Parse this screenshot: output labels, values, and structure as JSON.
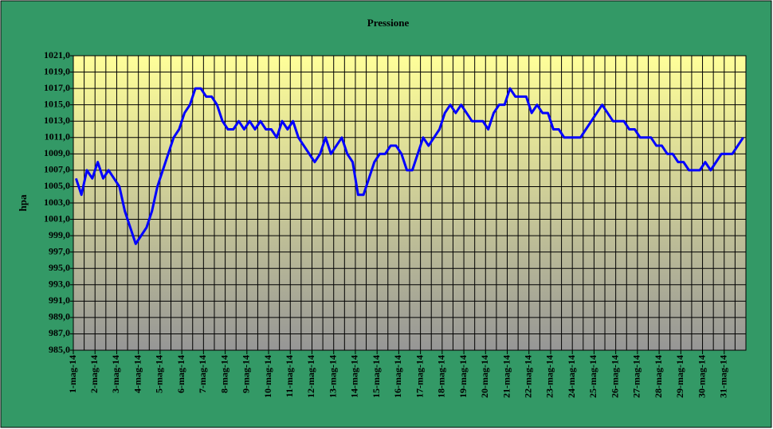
{
  "chart_data": {
    "type": "line",
    "title": "Pressione",
    "y_label": "hpa",
    "categories": [
      "1-mag-14",
      null,
      null,
      null,
      "2-mag-14",
      null,
      null,
      null,
      "3-mag-14",
      null,
      null,
      null,
      "4-mag-14",
      null,
      null,
      null,
      "5-mag-14",
      null,
      null,
      null,
      "6-mag-14",
      null,
      null,
      null,
      "7-mag-14",
      null,
      null,
      null,
      "8-mag-14",
      null,
      null,
      null,
      "9-mag-14",
      null,
      null,
      null,
      "10-mag-14",
      null,
      null,
      null,
      "11-mag-14",
      null,
      null,
      null,
      "12-mag-14",
      null,
      null,
      null,
      "13-mag-14",
      null,
      null,
      null,
      "14-mag-14",
      null,
      null,
      null,
      "15-mag-14",
      null,
      null,
      null,
      "16-mag-14",
      null,
      null,
      null,
      "17-mag-14",
      null,
      null,
      null,
      "18-mag-14",
      null,
      null,
      null,
      "19-mag-14",
      null,
      null,
      null,
      "20-mag-14",
      null,
      null,
      null,
      "21-mag-14",
      null,
      null,
      null,
      "22-mag-14",
      null,
      null,
      null,
      "23-mag-14",
      null,
      null,
      null,
      "24-mag-14",
      null,
      null,
      null,
      "25-mag-14",
      null,
      null,
      null,
      "26-mag-14",
      null,
      null,
      null,
      "27-mag-14",
      null,
      null,
      null,
      "28-mag-14",
      null,
      null,
      null,
      "29-mag-14",
      null,
      null,
      null,
      "30-mag-14",
      null,
      null,
      null,
      "31-mag-14",
      null,
      null,
      null
    ],
    "series": [
      {
        "name": "Pressione",
        "color": "#0000ff",
        "values": [
          1006,
          1004,
          1007,
          1006,
          1008,
          1006,
          1007,
          1006,
          1005,
          1002,
          1000,
          998,
          999,
          1000,
          1002,
          1005,
          1007,
          1009,
          1011,
          1012,
          1014,
          1015,
          1017,
          1017,
          1016,
          1016,
          1015,
          1013,
          1012,
          1012,
          1013,
          1012,
          1013,
          1012,
          1013,
          1012,
          1012,
          1011,
          1013,
          1012,
          1013,
          1011,
          1010,
          1009,
          1008,
          1009,
          1011,
          1009,
          1010,
          1011,
          1009,
          1008,
          1004,
          1004,
          1006,
          1008,
          1009,
          1009,
          1010,
          1010,
          1009,
          1007,
          1007,
          1009,
          1011,
          1010,
          1011,
          1012,
          1014,
          1015,
          1014,
          1015,
          1014,
          1013,
          1013,
          1013,
          1012,
          1014,
          1015,
          1015,
          1017,
          1016,
          1016,
          1016,
          1014,
          1015,
          1014,
          1014,
          1012,
          1012,
          1011,
          1011,
          1011,
          1011,
          1012,
          1013,
          1014,
          1015,
          1014,
          1013,
          1013,
          1013,
          1012,
          1012,
          1011,
          1011,
          1011,
          1010,
          1010,
          1009,
          1009,
          1008,
          1008,
          1007,
          1007,
          1007,
          1008,
          1007,
          1008,
          1009,
          1009,
          1009,
          1010,
          1011
        ]
      }
    ],
    "ylim": [
      985,
      1021
    ],
    "yticks": [
      {
        "value": 985,
        "label": "985,0"
      },
      {
        "value": 987,
        "label": "987,0"
      },
      {
        "value": 989,
        "label": "989,0"
      },
      {
        "value": 991,
        "label": "991,0"
      },
      {
        "value": 993,
        "label": "993,0"
      },
      {
        "value": 995,
        "label": "995,0"
      },
      {
        "value": 997,
        "label": "997,0"
      },
      {
        "value": 999,
        "label": "999,0"
      },
      {
        "value": 1001,
        "label": "1001,0"
      },
      {
        "value": 1003,
        "label": "1003,0"
      },
      {
        "value": 1005,
        "label": "1005,0"
      },
      {
        "value": 1007,
        "label": "1007,0"
      },
      {
        "value": 1009,
        "label": "1009,0"
      },
      {
        "value": 1011,
        "label": "1011,0"
      },
      {
        "value": 1013,
        "label": "1013,0"
      },
      {
        "value": 1015,
        "label": "1015,0"
      },
      {
        "value": 1017,
        "label": "1017,0"
      },
      {
        "value": 1019,
        "label": "1019,0"
      },
      {
        "value": 1021,
        "label": "1021,0"
      }
    ],
    "grid": true
  }
}
